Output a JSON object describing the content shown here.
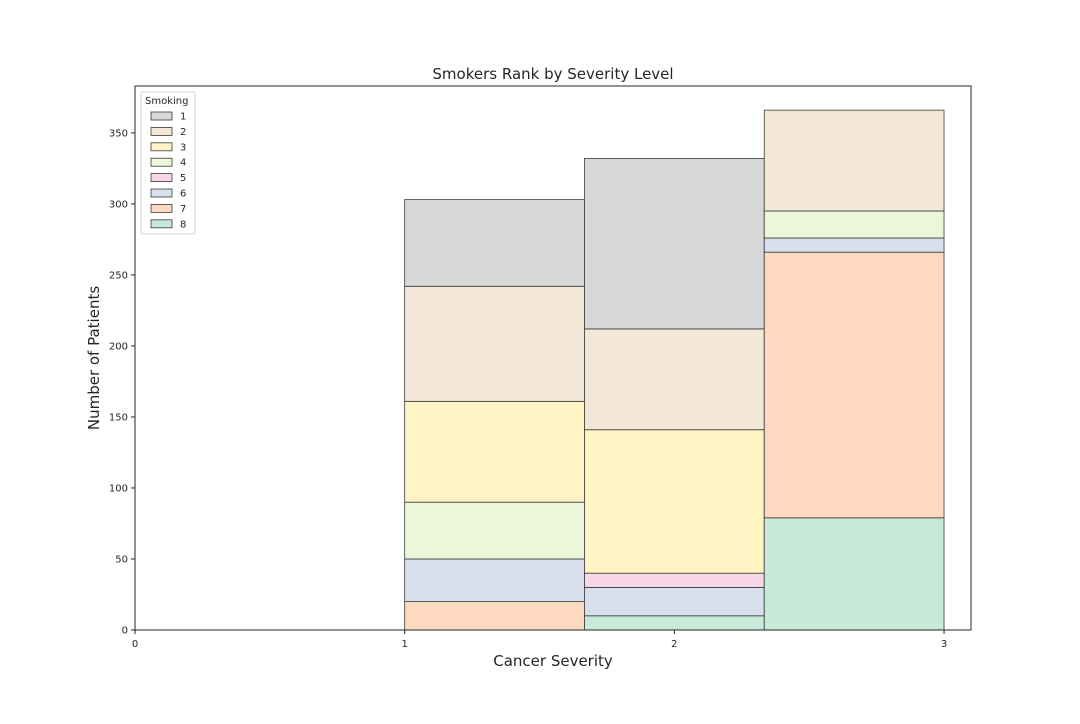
{
  "chart_data": {
    "type": "bar",
    "stacked": true,
    "title": "Smokers Rank by Severity Level",
    "xlabel": "Cancer Severity",
    "ylabel": "Number of Patients",
    "xlim": [
      0,
      3.1
    ],
    "ylim": [
      0,
      383
    ],
    "x_ticks": [
      "0",
      "1",
      "2",
      "3"
    ],
    "y_ticks": [
      "0",
      "50",
      "100",
      "150",
      "200",
      "250",
      "300",
      "350"
    ],
    "bins": [
      [
        1.0,
        1.6667
      ],
      [
        1.6667,
        2.3333
      ],
      [
        2.3333,
        3.0
      ]
    ],
    "legend": {
      "title": "Smoking",
      "position": "top-left"
    },
    "grid": false,
    "series": [
      {
        "name": "8",
        "color": "#c6e9d9",
        "values": [
          0,
          10,
          79
        ]
      },
      {
        "name": "7",
        "color": "#fdd9bf",
        "values": [
          20,
          0,
          187
        ]
      },
      {
        "name": "6",
        "color": "#d8e0ee",
        "values": [
          30,
          20,
          10
        ]
      },
      {
        "name": "5",
        "color": "#f8d6e7",
        "values": [
          0,
          10,
          0
        ]
      },
      {
        "name": "4",
        "color": "#ebf7d8",
        "values": [
          40,
          0,
          19
        ]
      },
      {
        "name": "3",
        "color": "#fff4c2",
        "values": [
          71,
          101,
          0
        ]
      },
      {
        "name": "2",
        "color": "#f3e8d8",
        "values": [
          81,
          71,
          71
        ]
      },
      {
        "name": "1",
        "color": "#d7d7d7",
        "values": [
          61,
          120,
          0
        ]
      }
    ]
  }
}
